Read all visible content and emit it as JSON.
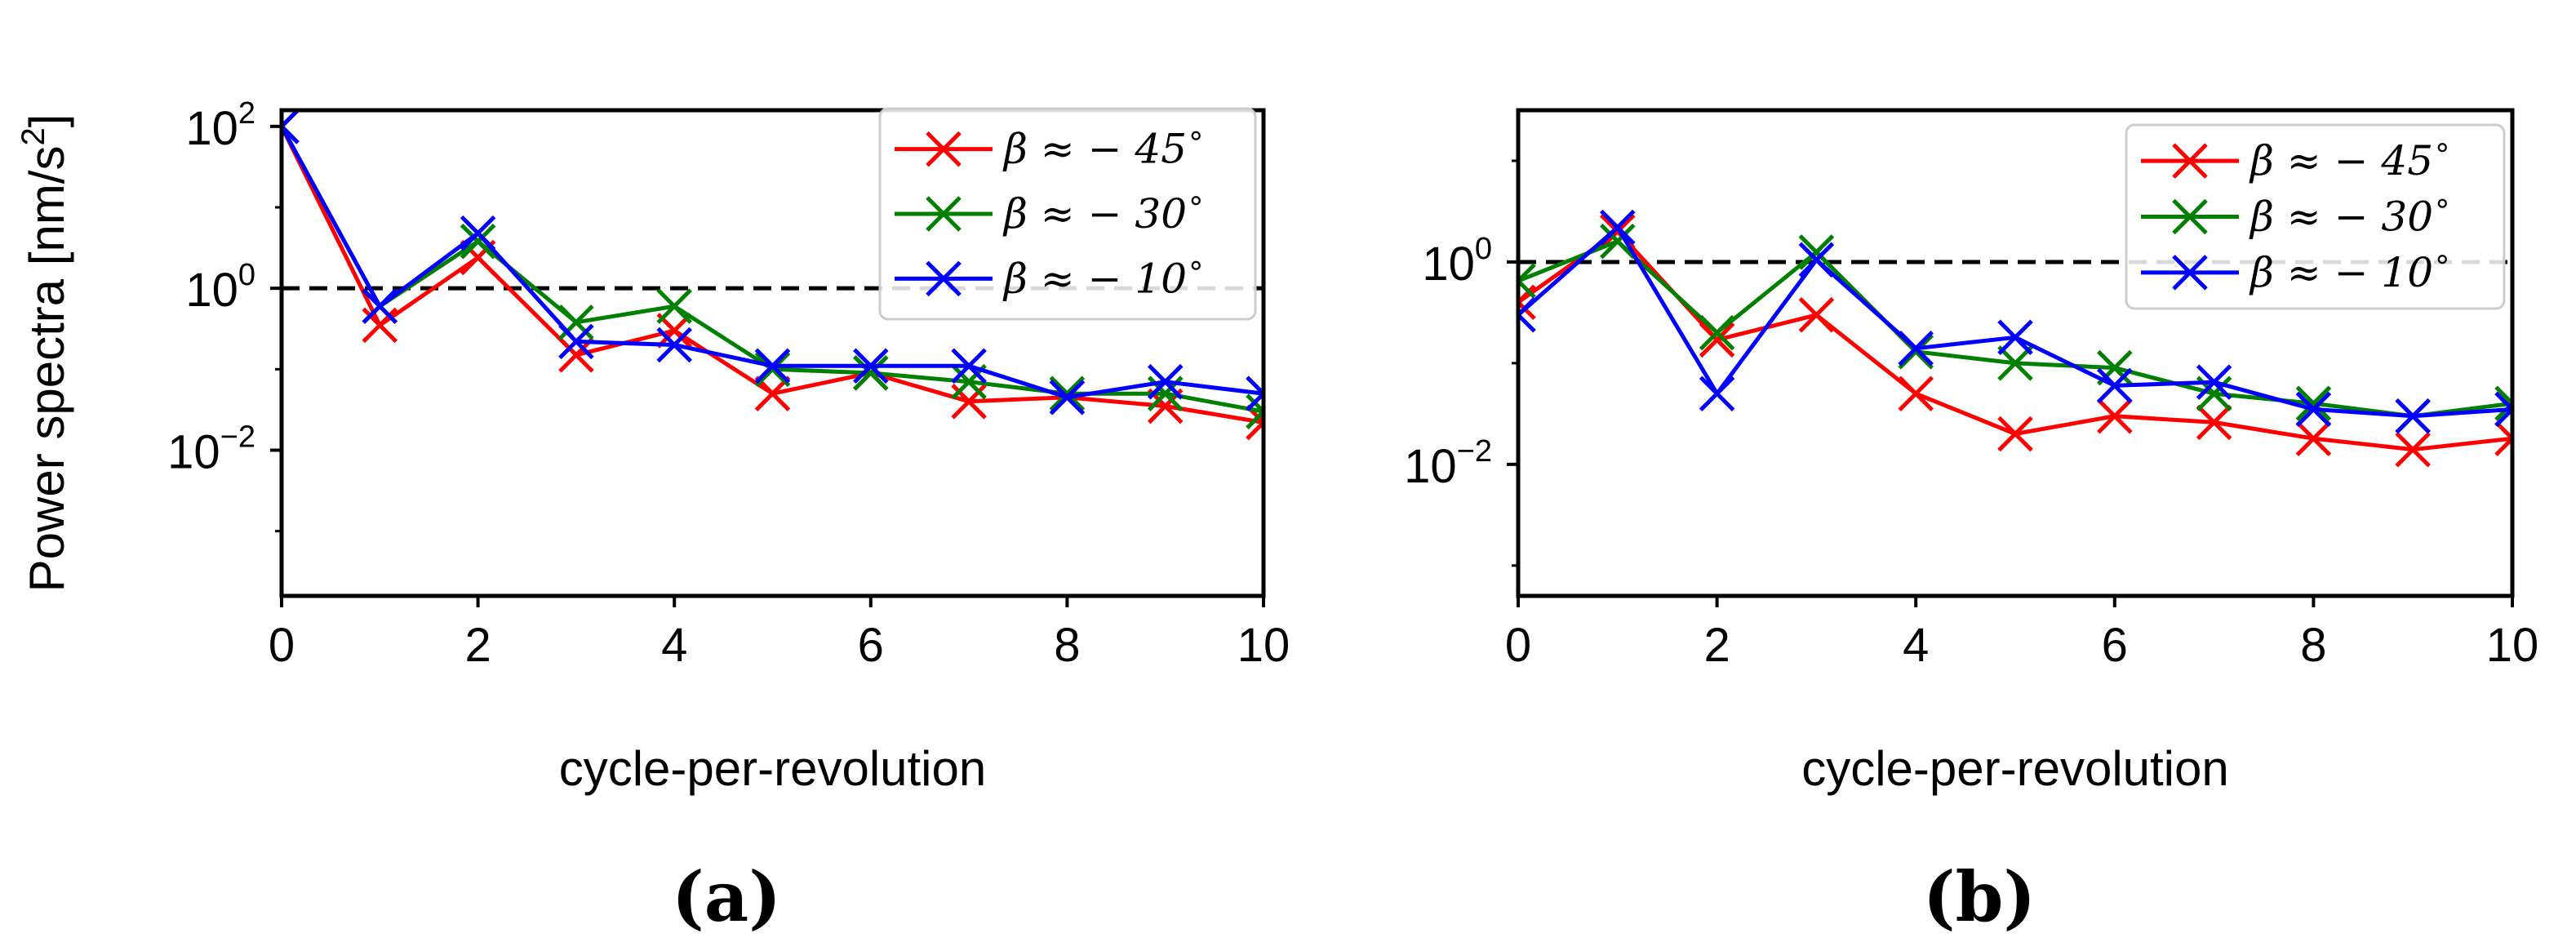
{
  "chart_data": [
    {
      "type": "line",
      "panel_label": "(a)",
      "xlabel": "cycle-per-revolution",
      "ylabel": "Power spectra [nm/s",
      "ylabel_superscript": "2",
      "ylabel_suffix": "]",
      "yscale": "log",
      "xlim": [
        0,
        10
      ],
      "ylim_exponent": [
        -3.8,
        2.2
      ],
      "x_ticks": [
        "0",
        "2",
        "4",
        "6",
        "8",
        "10"
      ],
      "y_ticks": [
        {
          "base": "10",
          "exp": "2"
        },
        {
          "base": "10",
          "exp": "0"
        },
        {
          "base": "10",
          "exp": "−2"
        }
      ],
      "reference_line": 1,
      "legend_position": "top-right",
      "x": [
        0,
        1,
        2,
        3,
        4,
        5,
        6,
        7,
        8,
        9,
        10
      ],
      "series": [
        {
          "name": "β ≈ − 45",
          "color": "#ff0000",
          "values": [
            100,
            0.35,
            2.4,
            0.15,
            0.3,
            0.05,
            0.09,
            0.04,
            0.045,
            0.035,
            0.022
          ]
        },
        {
          "name": "β ≈ − 30",
          "color": "#008000",
          "values": [
            100,
            0.6,
            3.8,
            0.38,
            0.6,
            0.1,
            0.09,
            0.07,
            0.05,
            0.05,
            0.03
          ]
        },
        {
          "name": "β ≈ − 10",
          "color": "#0000ff",
          "values": [
            100,
            0.6,
            4.8,
            0.22,
            0.2,
            0.11,
            0.11,
            0.11,
            0.045,
            0.07,
            0.05
          ]
        }
      ]
    },
    {
      "type": "line",
      "panel_label": "(b)",
      "xlabel": "cycle-per-revolution",
      "ylabel": "",
      "yscale": "log",
      "xlim": [
        0,
        10
      ],
      "ylim_exponent": [
        -3.3,
        1.5
      ],
      "x_ticks": [
        "0",
        "2",
        "4",
        "6",
        "8",
        "10"
      ],
      "y_ticks": [
        {
          "base": "10",
          "exp": "0"
        },
        {
          "base": "10",
          "exp": "−2"
        }
      ],
      "reference_line": 1,
      "legend_position": "top-right",
      "x": [
        0,
        1,
        2,
        3,
        4,
        5,
        6,
        7,
        8,
        9,
        10
      ],
      "series": [
        {
          "name": "β ≈ − 45",
          "color": "#ff0000",
          "values": [
            0.4,
            2.0,
            0.17,
            0.3,
            0.05,
            0.02,
            0.03,
            0.026,
            0.018,
            0.014,
            0.018
          ]
        },
        {
          "name": "β ≈ − 30",
          "color": "#008000",
          "values": [
            0.65,
            1.6,
            0.2,
            1.25,
            0.13,
            0.1,
            0.09,
            0.05,
            0.04,
            0.03,
            0.04
          ]
        },
        {
          "name": "β ≈ − 10",
          "color": "#0000ff",
          "values": [
            0.3,
            2.2,
            0.05,
            1.05,
            0.14,
            0.18,
            0.06,
            0.065,
            0.035,
            0.03,
            0.035
          ]
        }
      ]
    }
  ]
}
